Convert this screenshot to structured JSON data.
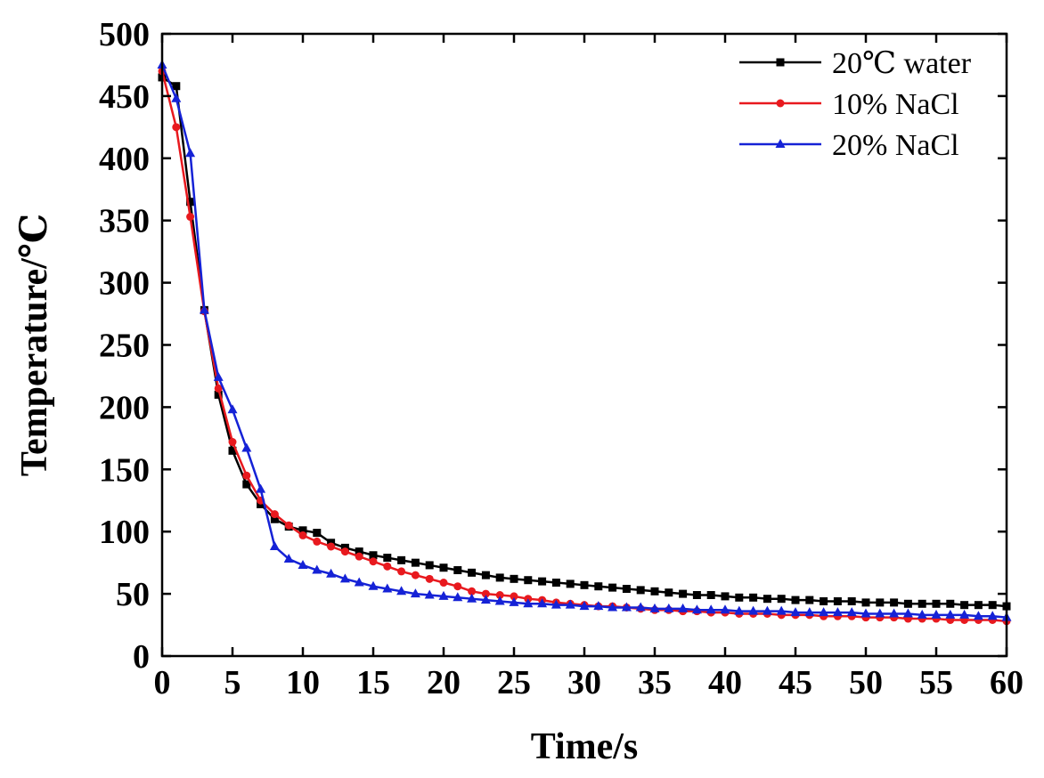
{
  "chart_data": {
    "type": "line",
    "title": "",
    "xlabel": "Time/s",
    "ylabel": "Temperature/℃",
    "xlim": [
      0,
      60
    ],
    "ylim": [
      0,
      500
    ],
    "xticks": [
      0,
      5,
      10,
      15,
      20,
      25,
      30,
      35,
      40,
      45,
      50,
      55,
      60
    ],
    "yticks": [
      0,
      50,
      100,
      150,
      200,
      250,
      300,
      350,
      400,
      450,
      500
    ],
    "grid": false,
    "legend_position": "top-right",
    "series": [
      {
        "name": "20℃ water",
        "color": "#000000",
        "marker": "square",
        "x": [
          0,
          1,
          2,
          3,
          4,
          5,
          6,
          7,
          8,
          9,
          10,
          11,
          12,
          13,
          14,
          15,
          16,
          17,
          18,
          19,
          20,
          21,
          22,
          23,
          24,
          25,
          26,
          27,
          28,
          29,
          30,
          31,
          32,
          33,
          34,
          35,
          36,
          37,
          38,
          39,
          40,
          41,
          42,
          43,
          44,
          45,
          46,
          47,
          48,
          49,
          50,
          51,
          52,
          53,
          54,
          55,
          56,
          57,
          58,
          59,
          60
        ],
        "y": [
          465,
          458,
          365,
          278,
          210,
          165,
          138,
          122,
          110,
          104,
          101,
          99,
          91,
          87,
          84,
          81,
          79,
          77,
          75,
          73,
          71,
          69,
          67,
          65,
          63,
          62,
          61,
          60,
          59,
          58,
          57,
          56,
          55,
          54,
          53,
          52,
          51,
          50,
          49,
          49,
          48,
          47,
          47,
          46,
          46,
          45,
          45,
          44,
          44,
          44,
          43,
          43,
          43,
          42,
          42,
          42,
          42,
          41,
          41,
          41,
          40
        ]
      },
      {
        "name": "10%  NaCl",
        "color": "#e8191e",
        "marker": "circle",
        "x": [
          0,
          1,
          2,
          3,
          4,
          5,
          6,
          7,
          8,
          9,
          10,
          11,
          12,
          13,
          14,
          15,
          16,
          17,
          18,
          19,
          20,
          21,
          22,
          23,
          24,
          25,
          26,
          27,
          28,
          29,
          30,
          31,
          32,
          33,
          34,
          35,
          36,
          37,
          38,
          39,
          40,
          41,
          42,
          43,
          44,
          45,
          46,
          47,
          48,
          49,
          50,
          51,
          52,
          53,
          54,
          55,
          56,
          57,
          58,
          59,
          60
        ],
        "y": [
          470,
          425,
          353,
          277,
          215,
          172,
          145,
          125,
          114,
          105,
          97,
          92,
          88,
          84,
          80,
          76,
          72,
          68,
          65,
          62,
          59,
          56,
          52,
          50,
          49,
          48,
          46,
          45,
          43,
          42,
          41,
          40,
          40,
          39,
          38,
          37,
          37,
          36,
          36,
          35,
          35,
          34,
          34,
          34,
          33,
          33,
          33,
          32,
          32,
          32,
          31,
          31,
          31,
          30,
          30,
          30,
          29,
          29,
          29,
          29,
          28
        ]
      },
      {
        "name": "20%  NaCl",
        "color": "#1522d6",
        "marker": "triangle",
        "x": [
          0,
          1,
          2,
          3,
          4,
          5,
          6,
          7,
          8,
          9,
          10,
          11,
          12,
          13,
          14,
          15,
          16,
          17,
          18,
          19,
          20,
          21,
          22,
          23,
          24,
          25,
          26,
          27,
          28,
          29,
          30,
          31,
          32,
          33,
          34,
          35,
          36,
          37,
          38,
          39,
          40,
          41,
          42,
          43,
          44,
          45,
          46,
          47,
          48,
          49,
          50,
          51,
          52,
          53,
          54,
          55,
          56,
          57,
          58,
          59,
          60
        ],
        "y": [
          475,
          448,
          404,
          278,
          224,
          198,
          167,
          134,
          88,
          78,
          73,
          69,
          66,
          62,
          59,
          56,
          54,
          52,
          50,
          49,
          48,
          47,
          46,
          45,
          44,
          43,
          42,
          42,
          41,
          41,
          40,
          40,
          39,
          39,
          39,
          38,
          38,
          38,
          37,
          37,
          37,
          36,
          36,
          36,
          36,
          35,
          35,
          35,
          35,
          35,
          34,
          34,
          34,
          34,
          33,
          33,
          33,
          33,
          32,
          32,
          31
        ]
      }
    ]
  }
}
